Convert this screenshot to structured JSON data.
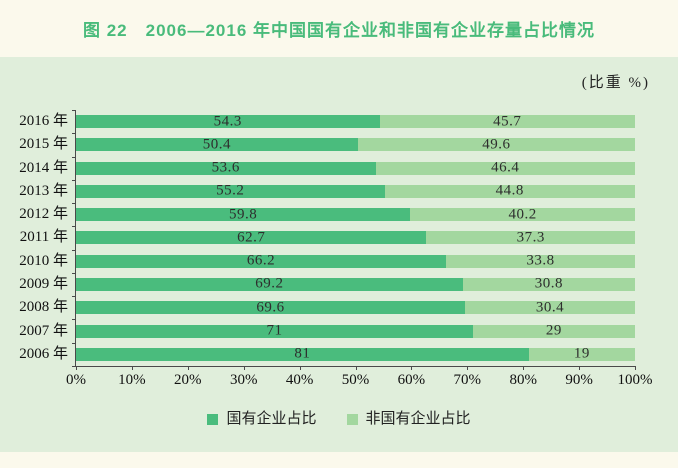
{
  "title": "图 22　2006—2016 年中国国有企业和非国有企业存量占比情况",
  "unit_label": "(比重 %)",
  "colors": {
    "page_bg": "#fbf9ec",
    "panel_bg": "#e0eedb",
    "title_green": "#49bb7b",
    "axis": "#4a4a4a",
    "soe_green": "#4abc7d",
    "non_soe_green": "#a3d79f"
  },
  "chart_data": {
    "type": "bar",
    "orientation": "horizontal-stacked",
    "title": "图 22　2006—2016 年中国国有企业和非国有企业存量占比情况",
    "unit": "比重 %",
    "categories": [
      "2016 年",
      "2015 年",
      "2014 年",
      "2013 年",
      "2012 年",
      "2011 年",
      "2010 年",
      "2009 年",
      "2008 年",
      "2007 年",
      "2006 年"
    ],
    "series": [
      {
        "name": "国有企业占比",
        "color": "#4abc7d",
        "values": [
          54.3,
          50.4,
          53.6,
          55.2,
          59.8,
          62.7,
          66.2,
          69.2,
          69.6,
          71,
          81
        ]
      },
      {
        "name": "非国有企业占比",
        "color": "#a3d79f",
        "values": [
          45.7,
          49.6,
          46.4,
          44.8,
          40.2,
          37.3,
          33.8,
          30.8,
          30.4,
          29,
          19
        ]
      }
    ],
    "xlim": [
      0,
      100
    ],
    "x_ticks": [
      "0%",
      "10%",
      "20%",
      "30%",
      "40%",
      "50%",
      "60%",
      "70%",
      "80%",
      "90%",
      "100%"
    ],
    "grid": false,
    "legend_position": "bottom"
  }
}
